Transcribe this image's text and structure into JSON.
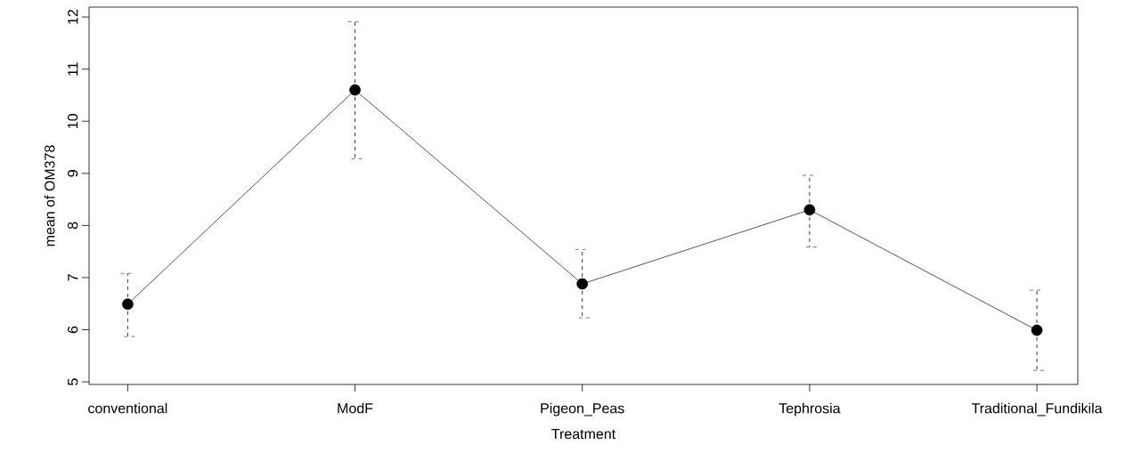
{
  "chart_data": {
    "type": "line",
    "xlabel": "Treatment",
    "ylabel": "mean of OM378",
    "categories": [
      "conventional",
      "ModF",
      "Pigeon_Peas",
      "Tephrosia",
      "Traditional_Fundikila"
    ],
    "values": [
      6.49,
      10.6,
      6.88,
      8.3,
      5.99
    ],
    "errors": [
      [
        5.87,
        7.08
      ],
      [
        9.28,
        11.91
      ],
      [
        6.23,
        7.54
      ],
      [
        7.59,
        8.96
      ],
      [
        5.22,
        6.76
      ]
    ],
    "color": "#000000",
    "marker": "circle",
    "line_style": "solid",
    "ylim": [
      4.95,
      12.19
    ],
    "yticks": [
      5,
      6,
      7,
      8,
      9,
      10,
      11,
      12
    ],
    "grid": false
  }
}
